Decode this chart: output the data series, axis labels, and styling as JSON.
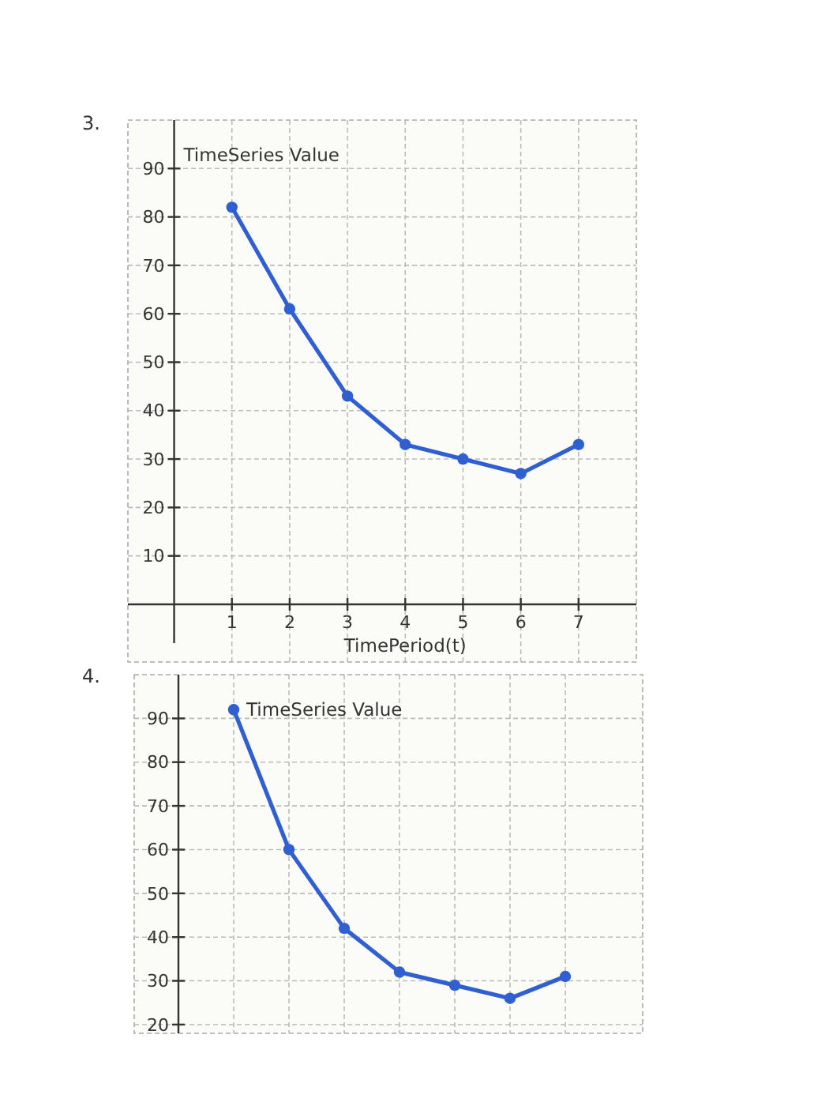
{
  "chart_data": [
    {
      "type": "line",
      "title": "3.",
      "xlabel": "TimePeriod(t)",
      "ylabel": "TimeSeries Value",
      "x": [
        1,
        2,
        3,
        4,
        5,
        6,
        7
      ],
      "series": [
        {
          "color": "#2f5fd0",
          "values": [
            82,
            61,
            43,
            33,
            30,
            27,
            33
          ]
        }
      ],
      "xlim": [
        -0.8,
        8
      ],
      "ylim": [
        -8,
        100
      ],
      "xticks": [
        1,
        2,
        3,
        4,
        5,
        6,
        7
      ],
      "yticks": [
        10,
        20,
        30,
        40,
        50,
        60,
        70,
        80,
        90
      ],
      "grid": true,
      "marker": "circle",
      "line_style": "solid"
    },
    {
      "type": "line",
      "title": "4.",
      "ylabel": "TimeSeries Value",
      "categories": [
        null,
        null,
        null,
        null,
        null,
        null,
        null
      ],
      "series": [
        {
          "color": "#2f5fd0",
          "values": [
            92,
            60,
            42,
            32,
            29,
            26,
            31
          ]
        }
      ],
      "ylim": [
        18,
        100
      ],
      "yticks": [
        20,
        30,
        40,
        50,
        60,
        70,
        80,
        90
      ],
      "grid": true,
      "marker": "circle",
      "line_style": "solid",
      "tick_labels": "y"
    }
  ]
}
